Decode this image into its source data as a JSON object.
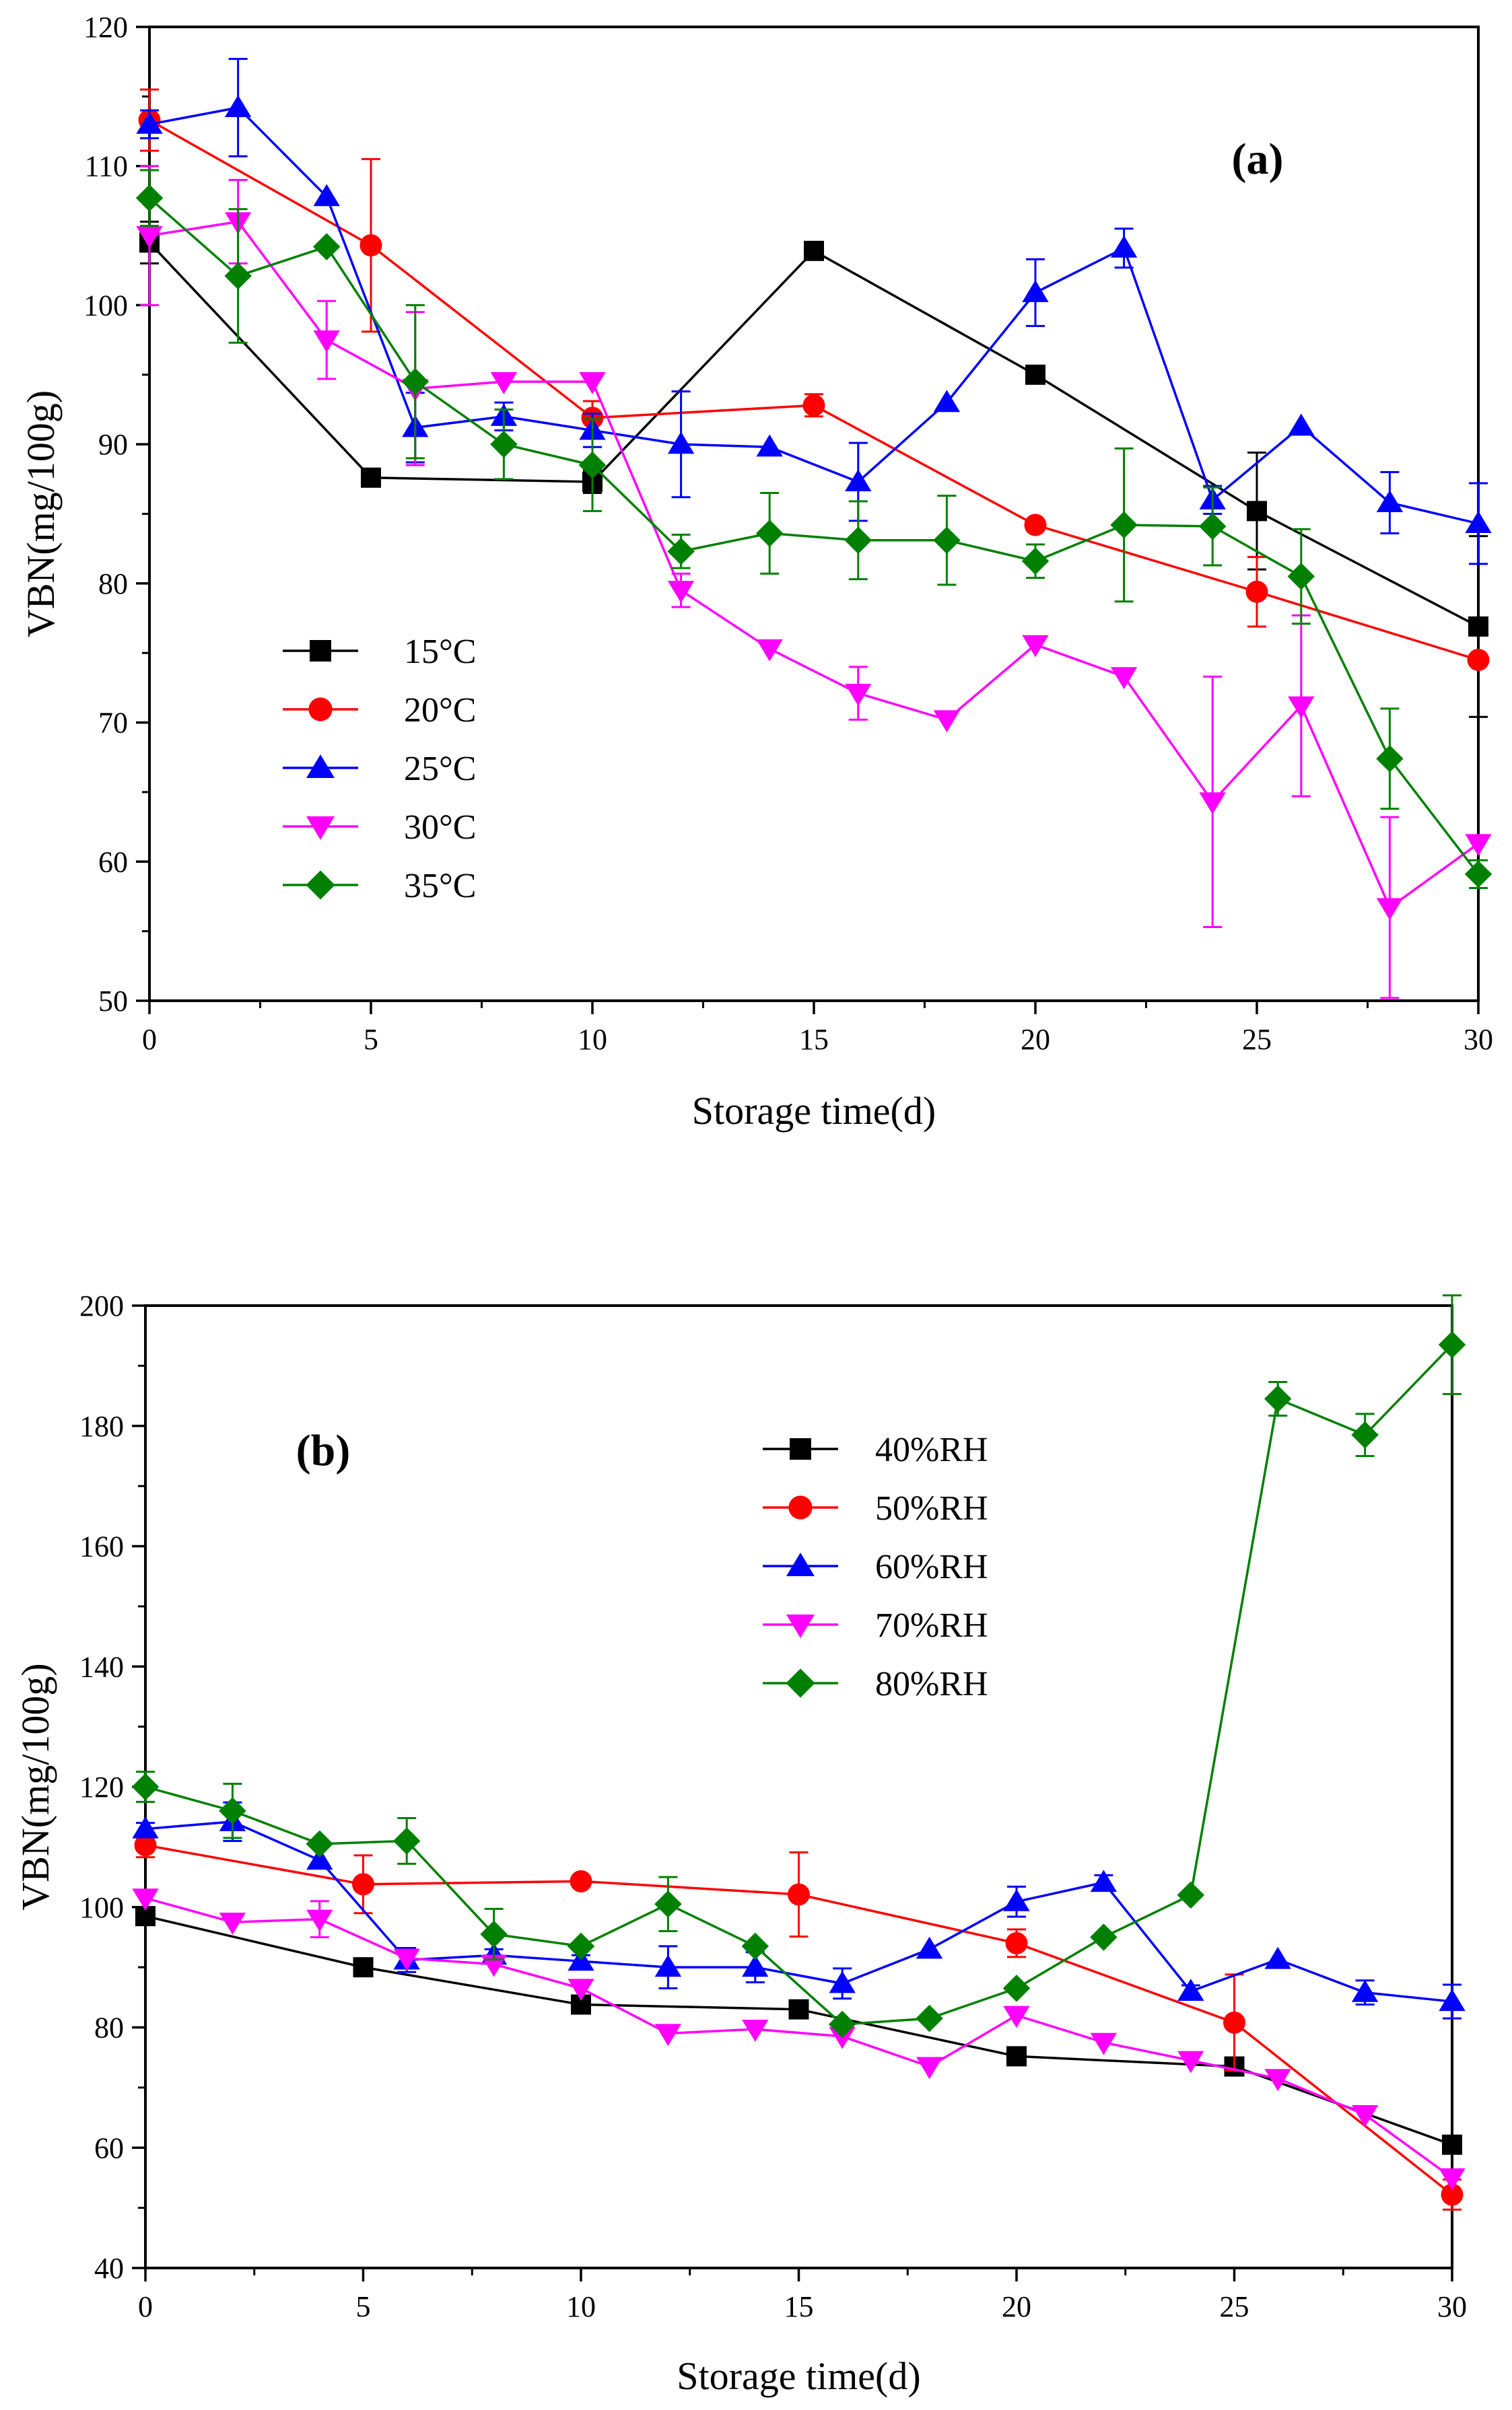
{
  "chart_data": [
    {
      "type": "line",
      "panel_label": "(a)",
      "xlabel": "Storage time(d)",
      "ylabel": "VBN(mg/100g)",
      "xlim": [
        0,
        30
      ],
      "ylim": [
        50,
        120
      ],
      "xticks": [
        0,
        5,
        10,
        15,
        20,
        25,
        30
      ],
      "yticks": [
        50,
        60,
        70,
        80,
        90,
        100,
        110,
        120
      ],
      "legend_position": "middle-left",
      "grid": false,
      "series": [
        {
          "name": "15°C",
          "color": "#000000",
          "marker": "square",
          "x": [
            0,
            5,
            10,
            15,
            20,
            25,
            30
          ],
          "y": [
            104.5,
            87.6,
            87.3,
            103.9,
            95,
            85.2,
            76.9
          ],
          "err": [
            1.5,
            0,
            0.8,
            0,
            0,
            4.2,
            6.5
          ]
        },
        {
          "name": "20°C",
          "color": "#ff0000",
          "marker": "circle",
          "x": [
            0,
            5,
            10,
            15,
            20,
            25,
            30
          ],
          "y": [
            113.3,
            104.3,
            91.9,
            92.8,
            84.2,
            79.4,
            74.5
          ],
          "err": [
            2.2,
            6.2,
            1.2,
            0.8,
            0,
            2.5,
            0
          ]
        },
        {
          "name": "25°C",
          "color": "#0000ff",
          "marker": "triangle-up",
          "x": [
            0,
            2,
            4,
            6,
            8,
            10,
            12,
            14,
            16,
            18,
            20,
            22,
            24,
            26,
            28,
            30
          ],
          "y": [
            113,
            114.2,
            107.8,
            91.2,
            92,
            91,
            90,
            89.8,
            87.3,
            93,
            100.9,
            104.1,
            86,
            91.3,
            85.8,
            84.3
          ],
          "err": [
            1,
            3.5,
            0,
            2.5,
            1,
            1.2,
            3.8,
            0,
            2.8,
            0,
            2.4,
            1.4,
            1,
            0,
            2.2,
            2.9
          ]
        },
        {
          "name": "30°C",
          "color": "#ff00ff",
          "marker": "triangle-down",
          "x": [
            0,
            2,
            4,
            6,
            8,
            10,
            12,
            14,
            16,
            18,
            20,
            22,
            24,
            26,
            28,
            30
          ],
          "y": [
            105,
            106,
            97.5,
            94,
            94.5,
            94.5,
            79.5,
            75.3,
            72.1,
            70.2,
            75.6,
            73.3,
            64.3,
            71.2,
            56.7,
            61.3
          ],
          "err": [
            5,
            3,
            2.8,
            5.5,
            0,
            0,
            1.2,
            0,
            1.9,
            0,
            0,
            0,
            9,
            6.5,
            6.5,
            0
          ]
        },
        {
          "name": "35°C",
          "color": "#008000",
          "marker": "diamond",
          "x": [
            0,
            2,
            4,
            6,
            8,
            10,
            12,
            14,
            16,
            18,
            20,
            22,
            24,
            26,
            28,
            30
          ],
          "y": [
            107.7,
            102.1,
            104.2,
            94.5,
            90,
            88.5,
            82.3,
            83.6,
            83.1,
            83.1,
            81.6,
            84.2,
            84.1,
            80.5,
            67.4,
            59.1
          ],
          "err": [
            2,
            4.8,
            0,
            5.5,
            2.5,
            3.3,
            1.2,
            2.9,
            2.8,
            3.2,
            1.2,
            5.5,
            2.8,
            3.4,
            3.6,
            1
          ]
        }
      ]
    },
    {
      "type": "line",
      "panel_label": "(b)",
      "xlabel": "Storage time(d)",
      "ylabel": "VBN(mg/100g)",
      "xlim": [
        0,
        30
      ],
      "ylim": [
        40,
        200
      ],
      "xticks": [
        0,
        5,
        10,
        15,
        20,
        25,
        30
      ],
      "yticks": [
        40,
        60,
        80,
        100,
        120,
        140,
        160,
        180,
        200
      ],
      "legend_position": "upper-middle",
      "grid": false,
      "series": [
        {
          "name": "40%RH",
          "color": "#000000",
          "marker": "square",
          "x": [
            0,
            5,
            10,
            15,
            20,
            25,
            30
          ],
          "y": [
            98.5,
            90,
            83.8,
            83,
            75.2,
            73.5,
            60.5
          ],
          "err": [
            0,
            0,
            0,
            0,
            0,
            0,
            0
          ]
        },
        {
          "name": "50%RH",
          "color": "#ff0000",
          "marker": "circle",
          "x": [
            0,
            5,
            10,
            15,
            20,
            25,
            30
          ],
          "y": [
            110.3,
            103.8,
            104.3,
            102.1,
            94,
            80.8,
            52.2
          ],
          "err": [
            2,
            4.8,
            0,
            7,
            2.3,
            8,
            2.5
          ]
        },
        {
          "name": "60%RH",
          "color": "#0000ff",
          "marker": "triangle-up",
          "x": [
            0,
            2,
            4,
            6,
            8,
            10,
            12,
            14,
            16,
            18,
            20,
            22,
            24,
            26,
            28,
            30
          ],
          "y": [
            113,
            114.2,
            107.8,
            91.2,
            92,
            91,
            90,
            90,
            87.3,
            93,
            100.9,
            104.1,
            86,
            91.3,
            85.8,
            84.3
          ],
          "err": [
            1,
            3.2,
            0,
            2,
            1,
            1,
            3.5,
            2.5,
            2.5,
            0,
            2.5,
            1.2,
            1,
            0,
            2,
            2.8
          ]
        },
        {
          "name": "70%RH",
          "color": "#ff00ff",
          "marker": "triangle-down",
          "x": [
            0,
            2,
            4,
            6,
            8,
            10,
            12,
            14,
            16,
            18,
            20,
            22,
            24,
            26,
            28,
            30
          ],
          "y": [
            101.5,
            97.5,
            98,
            91.5,
            90.5,
            86.5,
            79,
            79.7,
            78.5,
            73.5,
            82,
            77.5,
            74.5,
            71.5,
            65.5,
            55
          ],
          "err": [
            0,
            0,
            3,
            0,
            0,
            0,
            0,
            0,
            0,
            0,
            0,
            0,
            0,
            0,
            0,
            0
          ]
        },
        {
          "name": "80%RH",
          "color": "#008000",
          "marker": "diamond",
          "x": [
            0,
            2,
            4,
            6,
            8,
            10,
            12,
            14,
            16,
            18,
            20,
            22,
            24,
            26,
            28,
            30
          ],
          "y": [
            120,
            116,
            110.5,
            111,
            95.5,
            93.5,
            100.5,
            93.5,
            80.5,
            81.5,
            86.5,
            95,
            102,
            184.5,
            178.5,
            193.5
          ],
          "err": [
            2.5,
            4.5,
            0,
            3.8,
            4.2,
            0,
            4.5,
            0,
            0,
            0,
            0,
            0,
            0,
            2.8,
            3.5,
            8.2
          ]
        }
      ]
    }
  ]
}
